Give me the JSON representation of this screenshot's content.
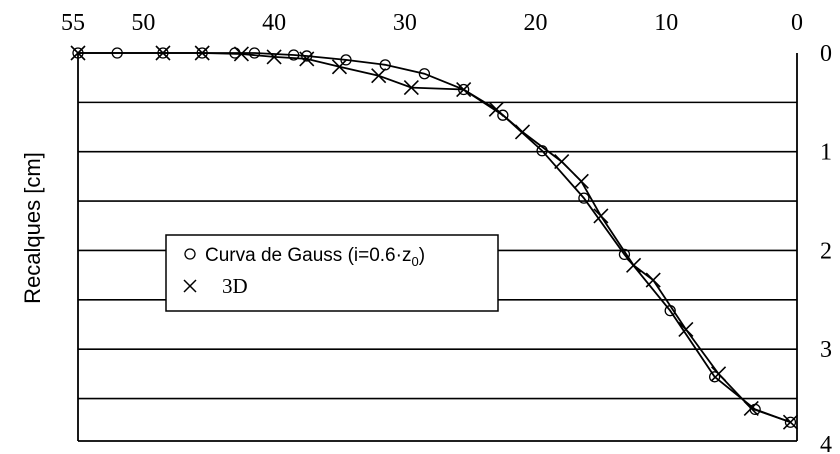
{
  "chart_data": {
    "type": "line",
    "title": "",
    "xlabel": "",
    "ylabel": "Recalques [cm]",
    "xlim": [
      55,
      0
    ],
    "ylim": [
      0,
      4
    ],
    "x_ticks": [
      "55",
      "50",
      "40",
      "30",
      "20",
      "10",
      "0"
    ],
    "y_ticks": [
      "0",
      "1",
      "2",
      "3",
      "4"
    ],
    "x_axis_position": "top",
    "y_axis_position": "right",
    "y_inverted": true,
    "grid": "horizontal",
    "legend": {
      "placement": "left-middle",
      "gauss_prefix": "Curva de Gauss (i=0.6·z",
      "gauss_sub": "0",
      "gauss_suffix": ")",
      "label_3d": "3D"
    },
    "series": [
      {
        "name": "Curva de Gauss (i=0.6·z0)",
        "marker": "circle",
        "points": [
          [
            55,
            0.0
          ],
          [
            52,
            0.0
          ],
          [
            48.5,
            0.0
          ],
          [
            45.5,
            0.0
          ],
          [
            43,
            0.0
          ],
          [
            41.5,
            0.0
          ],
          [
            38.5,
            0.02
          ],
          [
            37.5,
            0.03
          ],
          [
            34.5,
            0.07
          ],
          [
            31.5,
            0.12
          ],
          [
            28.5,
            0.21
          ],
          [
            25.5,
            0.37
          ],
          [
            22.5,
            0.63
          ],
          [
            19.5,
            0.99
          ],
          [
            16.3,
            1.47
          ],
          [
            13.2,
            2.04
          ],
          [
            9.7,
            2.61
          ],
          [
            6.3,
            3.28
          ],
          [
            3.2,
            3.61
          ],
          [
            0.5,
            3.74
          ]
        ]
      },
      {
        "name": "3D",
        "marker": "x",
        "points": [
          [
            55,
            0.0
          ],
          [
            48.5,
            0.0
          ],
          [
            45.5,
            0.0
          ],
          [
            42.5,
            0.01
          ],
          [
            40,
            0.04
          ],
          [
            37.5,
            0.06
          ],
          [
            35,
            0.14
          ],
          [
            32,
            0.23
          ],
          [
            29.5,
            0.35
          ],
          [
            25.5,
            0.37
          ],
          [
            23,
            0.57
          ],
          [
            21,
            0.8
          ],
          [
            18,
            1.1
          ],
          [
            16.5,
            1.3
          ],
          [
            15,
            1.65
          ],
          [
            12.5,
            2.15
          ],
          [
            11,
            2.3
          ],
          [
            8.5,
            2.8
          ],
          [
            6,
            3.25
          ],
          [
            3.5,
            3.6
          ],
          [
            0.5,
            3.74
          ]
        ]
      }
    ]
  }
}
